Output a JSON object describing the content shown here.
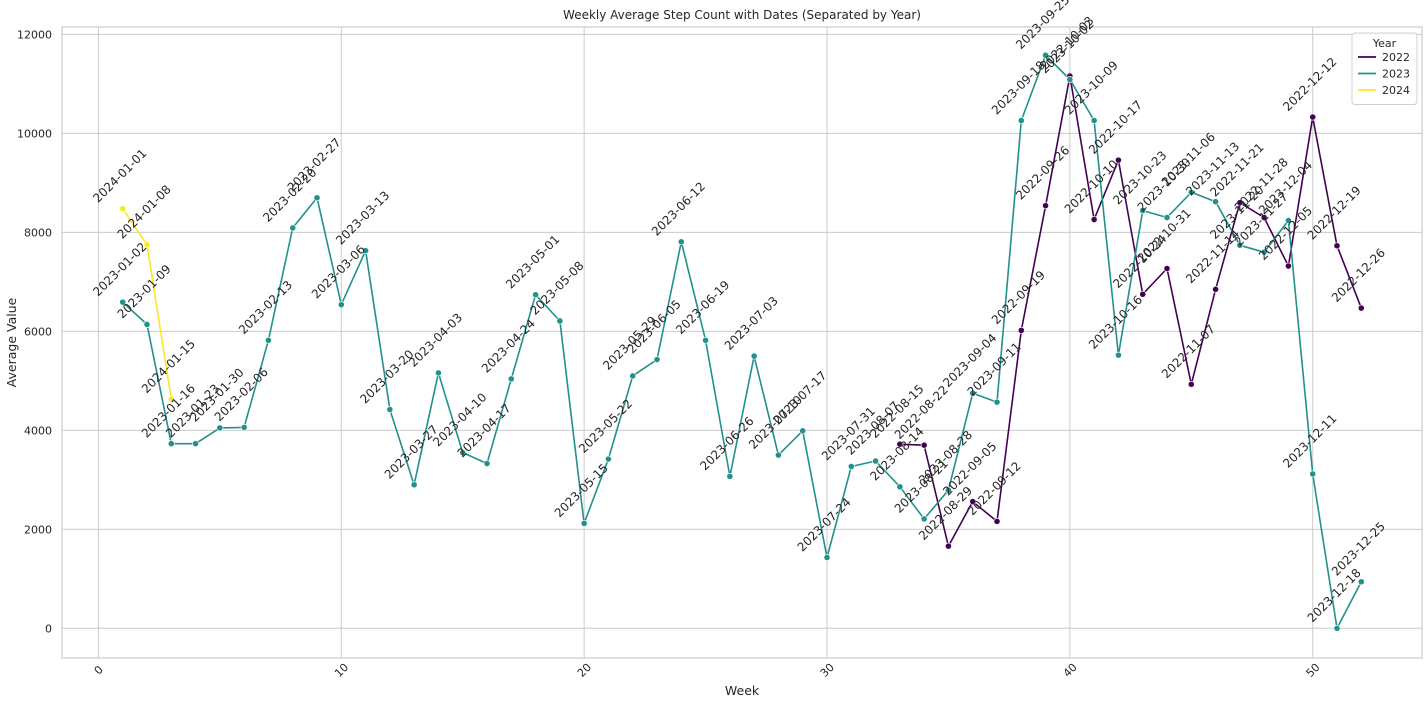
{
  "chart_data": {
    "type": "line",
    "title": "Weekly Average Step Count with Dates (Separated by Year)",
    "xlabel": "Week",
    "ylabel": "Average Value",
    "xlim": [
      -1.5,
      54.5
    ],
    "ylim": [
      -600,
      12150
    ],
    "xticks": [
      0,
      10,
      20,
      30,
      40,
      50
    ],
    "yticks": [
      0,
      2000,
      4000,
      6000,
      8000,
      10000,
      12000
    ],
    "grid": true,
    "legend": {
      "title": "Year",
      "position": "top-right"
    },
    "series": [
      {
        "name": "2022",
        "color": "#440154",
        "points": [
          {
            "week": 33,
            "value": 3720,
            "date": "2022-08-15"
          },
          {
            "week": 34,
            "value": 3700,
            "date": "2022-08-22"
          },
          {
            "week": 35,
            "value": 1660,
            "date": "2022-08-29"
          },
          {
            "week": 36,
            "value": 2560,
            "date": "2022-09-05"
          },
          {
            "week": 37,
            "value": 2160,
            "date": "2022-09-12"
          },
          {
            "week": 38,
            "value": 6020,
            "date": "2022-09-19"
          },
          {
            "week": 39,
            "value": 8540,
            "date": "2022-09-26"
          },
          {
            "week": 40,
            "value": 11160,
            "date": "2022-10-03"
          },
          {
            "week": 41,
            "value": 8260,
            "date": "2022-10-10"
          },
          {
            "week": 42,
            "value": 9460,
            "date": "2022-10-17"
          },
          {
            "week": 43,
            "value": 6750,
            "date": "2022-10-24"
          },
          {
            "week": 44,
            "value": 7270,
            "date": "2022-10-31"
          },
          {
            "week": 45,
            "value": 4930,
            "date": "2022-11-07"
          },
          {
            "week": 46,
            "value": 6850,
            "date": "2022-11-14"
          },
          {
            "week": 47,
            "value": 8600,
            "date": "2022-11-21"
          },
          {
            "week": 48,
            "value": 8300,
            "date": "2022-11-28"
          },
          {
            "week": 49,
            "value": 7320,
            "date": "2022-12-05"
          },
          {
            "week": 50,
            "value": 10330,
            "date": "2022-12-12"
          },
          {
            "week": 51,
            "value": 7730,
            "date": "2022-12-19"
          },
          {
            "week": 52,
            "value": 6470,
            "date": "2022-12-26"
          }
        ]
      },
      {
        "name": "2023",
        "color": "#21918c",
        "points": [
          {
            "week": 1,
            "value": 6590,
            "date": "2023-01-02"
          },
          {
            "week": 2,
            "value": 6140,
            "date": "2023-01-09"
          },
          {
            "week": 3,
            "value": 3730,
            "date": "2023-01-16"
          },
          {
            "week": 4,
            "value": 3730,
            "date": "2023-01-23"
          },
          {
            "week": 5,
            "value": 4050,
            "date": "2023-01-30"
          },
          {
            "week": 6,
            "value": 4060,
            "date": "2023-02-06"
          },
          {
            "week": 7,
            "value": 5820,
            "date": "2023-02-13"
          },
          {
            "week": 8,
            "value": 8090,
            "date": "2023-02-20"
          },
          {
            "week": 9,
            "value": 8700,
            "date": "2023-02-27"
          },
          {
            "week": 10,
            "value": 6540,
            "date": "2023-03-06"
          },
          {
            "week": 11,
            "value": 7630,
            "date": "2023-03-13"
          },
          {
            "week": 12,
            "value": 4420,
            "date": "2023-03-20"
          },
          {
            "week": 13,
            "value": 2900,
            "date": "2023-03-27"
          },
          {
            "week": 14,
            "value": 5160,
            "date": "2023-04-03"
          },
          {
            "week": 15,
            "value": 3550,
            "date": "2023-04-10"
          },
          {
            "week": 16,
            "value": 3330,
            "date": "2023-04-17"
          },
          {
            "week": 17,
            "value": 5040,
            "date": "2023-04-24"
          },
          {
            "week": 18,
            "value": 6740,
            "date": "2023-05-01"
          },
          {
            "week": 19,
            "value": 6210,
            "date": "2023-05-08"
          },
          {
            "week": 20,
            "value": 2120,
            "date": "2023-05-15"
          },
          {
            "week": 21,
            "value": 3420,
            "date": "2023-05-22"
          },
          {
            "week": 22,
            "value": 5100,
            "date": "2023-05-29"
          },
          {
            "week": 23,
            "value": 5430,
            "date": "2023-06-05"
          },
          {
            "week": 24,
            "value": 7810,
            "date": "2023-06-12"
          },
          {
            "week": 25,
            "value": 5820,
            "date": "2023-06-19"
          },
          {
            "week": 26,
            "value": 3070,
            "date": "2023-06-26"
          },
          {
            "week": 27,
            "value": 5500,
            "date": "2023-07-03"
          },
          {
            "week": 28,
            "value": 3500,
            "date": "2023-07-10"
          },
          {
            "week": 29,
            "value": 3990,
            "date": "2023-07-17"
          },
          {
            "week": 30,
            "value": 1430,
            "date": "2023-07-24"
          },
          {
            "week": 31,
            "value": 3270,
            "date": "2023-07-31"
          },
          {
            "week": 32,
            "value": 3380,
            "date": "2023-08-07"
          },
          {
            "week": 33,
            "value": 2860,
            "date": "2023-08-14"
          },
          {
            "week": 34,
            "value": 2210,
            "date": "2023-08-21"
          },
          {
            "week": 35,
            "value": 2790,
            "date": "2023-08-28"
          },
          {
            "week": 36,
            "value": 4750,
            "date": "2023-09-04"
          },
          {
            "week": 37,
            "value": 4570,
            "date": "2023-09-11"
          },
          {
            "week": 38,
            "value": 10260,
            "date": "2023-09-18"
          },
          {
            "week": 39,
            "value": 11580,
            "date": "2023-09-25"
          },
          {
            "week": 40,
            "value": 11090,
            "date": "2023-10-02"
          },
          {
            "week": 41,
            "value": 10260,
            "date": "2023-10-09"
          },
          {
            "week": 42,
            "value": 5520,
            "date": "2023-10-16"
          },
          {
            "week": 43,
            "value": 8440,
            "date": "2023-10-23"
          },
          {
            "week": 44,
            "value": 8300,
            "date": "2023-10-30"
          },
          {
            "week": 45,
            "value": 8810,
            "date": "2023-11-06"
          },
          {
            "week": 46,
            "value": 8620,
            "date": "2023-11-13"
          },
          {
            "week": 47,
            "value": 7740,
            "date": "2023-11-20"
          },
          {
            "week": 48,
            "value": 7600,
            "date": "2023-11-27"
          },
          {
            "week": 49,
            "value": 8240,
            "date": "2023-12-04"
          },
          {
            "week": 50,
            "value": 3120,
            "date": "2023-12-11"
          },
          {
            "week": 51,
            "value": 0,
            "date": "2023-12-18"
          },
          {
            "week": 52,
            "value": 940,
            "date": "2023-12-25"
          }
        ]
      },
      {
        "name": "2024",
        "color": "#fde725",
        "points": [
          {
            "week": 1,
            "value": 8480,
            "date": "2024-01-01"
          },
          {
            "week": 2,
            "value": 7750,
            "date": "2024-01-08"
          },
          {
            "week": 3,
            "value": 4630,
            "date": "2024-01-15"
          }
        ]
      }
    ]
  }
}
